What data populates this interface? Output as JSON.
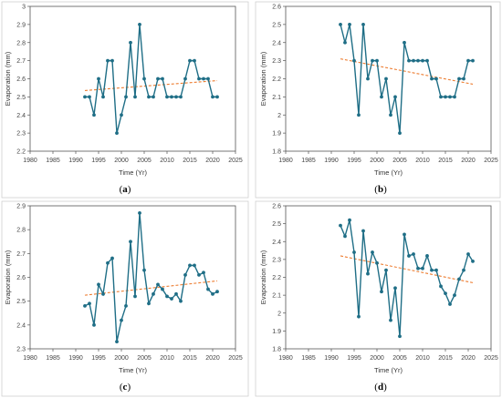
{
  "chart_data": [
    {
      "type": "line",
      "panel_label": "a",
      "xlabel": "Time (Yr)",
      "ylabel": "Evaporation (mm)",
      "xlim": [
        1980,
        2025
      ],
      "xticks": [
        1980,
        1985,
        1990,
        1995,
        2000,
        2005,
        2010,
        2015,
        2020,
        2025
      ],
      "ylim": [
        2.2,
        3.0
      ],
      "yticks": [
        2.2,
        2.3,
        2.4,
        2.5,
        2.6,
        2.7,
        2.8,
        2.9,
        3.0
      ],
      "ytick_labels": [
        "2.2",
        "2.3",
        "2.4",
        "2.5",
        "2.6",
        "2.7",
        "2.8",
        "2.9",
        "3"
      ],
      "x": [
        1992,
        1993,
        1994,
        1995,
        1996,
        1997,
        1998,
        1999,
        2000,
        2001,
        2002,
        2003,
        2004,
        2005,
        2006,
        2007,
        2008,
        2009,
        2010,
        2011,
        2012,
        2013,
        2014,
        2015,
        2016,
        2017,
        2018,
        2019,
        2020,
        2021
      ],
      "series": [
        {
          "values": [
            2.5,
            2.5,
            2.4,
            2.6,
            2.5,
            2.7,
            2.7,
            2.3,
            2.4,
            2.5,
            2.8,
            2.5,
            2.9,
            2.6,
            2.5,
            2.5,
            2.6,
            2.6,
            2.5,
            2.5,
            2.5,
            2.5,
            2.6,
            2.7,
            2.7,
            2.6,
            2.6,
            2.6,
            2.5,
            2.5
          ],
          "color": "#1f6e86"
        }
      ],
      "trendline": {
        "x": [
          1992,
          2021
        ],
        "y": [
          2.535,
          2.59
        ],
        "color": "#ed7d31",
        "style": "dashed"
      },
      "grid": false
    },
    {
      "type": "line",
      "panel_label": "b",
      "xlabel": "Time (Yr)",
      "ylabel": "Evaporation  (mm)",
      "xlim": [
        1980,
        2025
      ],
      "xticks": [
        1980,
        1985,
        1990,
        1995,
        2000,
        2005,
        2010,
        2015,
        2020,
        2025
      ],
      "ylim": [
        1.8,
        2.6
      ],
      "yticks": [
        1.8,
        1.9,
        2.0,
        2.1,
        2.2,
        2.3,
        2.4,
        2.5,
        2.6
      ],
      "ytick_labels": [
        "1.8",
        "1.9",
        "2",
        "2.1",
        "2.2",
        "2.3",
        "2.4",
        "2.5",
        "2.6"
      ],
      "x": [
        1992,
        1993,
        1994,
        1995,
        1996,
        1997,
        1998,
        1999,
        2000,
        2001,
        2002,
        2003,
        2004,
        2005,
        2006,
        2007,
        2008,
        2009,
        2010,
        2011,
        2012,
        2013,
        2014,
        2015,
        2016,
        2017,
        2018,
        2019,
        2020,
        2021
      ],
      "series": [
        {
          "values": [
            2.5,
            2.4,
            2.5,
            2.3,
            2.0,
            2.5,
            2.2,
            2.3,
            2.3,
            2.1,
            2.2,
            2.0,
            2.1,
            1.9,
            2.4,
            2.3,
            2.3,
            2.3,
            2.3,
            2.3,
            2.2,
            2.2,
            2.1,
            2.1,
            2.1,
            2.1,
            2.2,
            2.2,
            2.3,
            2.3
          ],
          "color": "#1f6e86"
        }
      ],
      "trendline": {
        "x": [
          1992,
          2021
        ],
        "y": [
          2.31,
          2.17
        ],
        "color": "#ed7d31",
        "style": "dashed"
      },
      "grid": false
    },
    {
      "type": "line",
      "panel_label": "c",
      "xlabel": "Time (Yr)",
      "ylabel": "Evaporation (mm)",
      "xlim": [
        1980,
        2025
      ],
      "xticks": [
        1980,
        1985,
        1990,
        1995,
        2000,
        2005,
        2010,
        2015,
        2020,
        2025
      ],
      "ylim": [
        2.3,
        2.9
      ],
      "yticks": [
        2.3,
        2.4,
        2.5,
        2.6,
        2.7,
        2.8,
        2.9
      ],
      "ytick_labels": [
        "2.3",
        "2.4",
        "2.5",
        "2.6",
        "2.7",
        "2.8",
        "2.9"
      ],
      "x": [
        1992,
        1993,
        1994,
        1995,
        1996,
        1997,
        1998,
        1999,
        2000,
        2001,
        2002,
        2003,
        2004,
        2005,
        2006,
        2007,
        2008,
        2009,
        2010,
        2011,
        2012,
        2013,
        2014,
        2015,
        2016,
        2017,
        2018,
        2019,
        2020,
        2021
      ],
      "series": [
        {
          "values": [
            2.48,
            2.49,
            2.4,
            2.57,
            2.53,
            2.66,
            2.68,
            2.33,
            2.42,
            2.48,
            2.75,
            2.52,
            2.87,
            2.63,
            2.49,
            2.53,
            2.57,
            2.55,
            2.52,
            2.51,
            2.53,
            2.5,
            2.61,
            2.65,
            2.65,
            2.61,
            2.62,
            2.55,
            2.53,
            2.54
          ],
          "color": "#1f6e86"
        }
      ],
      "trendline": {
        "x": [
          1992,
          2021
        ],
        "y": [
          2.525,
          2.585
        ],
        "color": "#ed7d31",
        "style": "dashed"
      },
      "grid": false
    },
    {
      "type": "line",
      "panel_label": "d",
      "xlabel": "Time (Yr)",
      "ylabel": "Evaporation (mm)",
      "xlim": [
        1980,
        2025
      ],
      "xticks": [
        1980,
        1985,
        1990,
        1995,
        2000,
        2005,
        2010,
        2015,
        2020,
        2025
      ],
      "ylim": [
        1.8,
        2.6
      ],
      "yticks": [
        1.8,
        1.9,
        2.0,
        2.1,
        2.2,
        2.3,
        2.4,
        2.5,
        2.6
      ],
      "ytick_labels": [
        "1.8",
        "1.9",
        "2",
        "2.1",
        "2.2",
        "2.3",
        "2.4",
        "2.5",
        "2.6"
      ],
      "x": [
        1992,
        1993,
        1994,
        1995,
        1996,
        1997,
        1998,
        1999,
        2000,
        2001,
        2002,
        2003,
        2004,
        2005,
        2006,
        2007,
        2008,
        2009,
        2010,
        2011,
        2012,
        2013,
        2014,
        2015,
        2016,
        2017,
        2018,
        2019,
        2020,
        2021
      ],
      "series": [
        {
          "values": [
            2.49,
            2.43,
            2.52,
            2.34,
            1.98,
            2.46,
            2.22,
            2.34,
            2.28,
            2.12,
            2.24,
            1.96,
            2.14,
            1.87,
            2.44,
            2.32,
            2.33,
            2.25,
            2.25,
            2.32,
            2.24,
            2.24,
            2.15,
            2.11,
            2.05,
            2.1,
            2.19,
            2.24,
            2.33,
            2.29
          ],
          "color": "#1f6e86"
        }
      ],
      "trendline": {
        "x": [
          1992,
          2021
        ],
        "y": [
          2.32,
          2.17
        ],
        "color": "#ed7d31",
        "style": "dashed"
      },
      "grid": false
    }
  ]
}
